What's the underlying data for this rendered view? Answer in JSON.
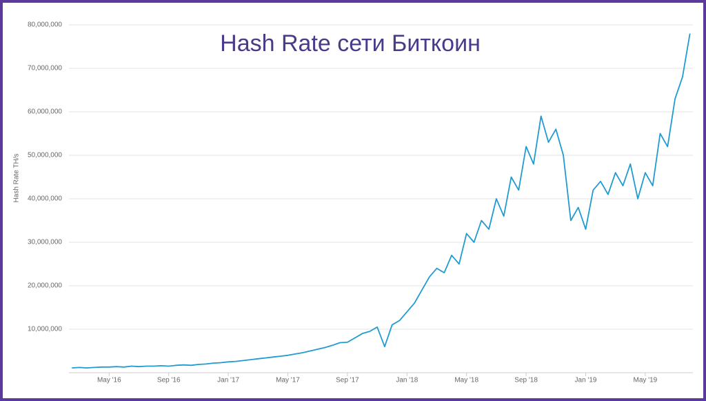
{
  "chart_data": {
    "type": "line",
    "title": "Hash Rate сети Биткоин",
    "y_label": "Hash Rate TH/s",
    "x": [
      1.5,
      2,
      2.5,
      3,
      3.5,
      4,
      4.5,
      5,
      5.5,
      6,
      6.5,
      7,
      7.5,
      8,
      8.5,
      9,
      9.5,
      10,
      10.5,
      11,
      11.5,
      12,
      12.5,
      13,
      13.5,
      14,
      14.5,
      15,
      15.5,
      16,
      16.5,
      17,
      17.5,
      18,
      18.5,
      19,
      19.5,
      20,
      20.5,
      21,
      21.5,
      22,
      22.5,
      23,
      23.5,
      24,
      24.5,
      25,
      25.5,
      26,
      26.5,
      27,
      27.5,
      28,
      28.5,
      29,
      29.5,
      30,
      30.5,
      31,
      31.5,
      32,
      32.5,
      33,
      33.5,
      34,
      34.5,
      35,
      35.5,
      36,
      36.5,
      37,
      37.5,
      38,
      38.5,
      39,
      39.5,
      40,
      40.5,
      41,
      41.5,
      42,
      42.5,
      43
    ],
    "series": [
      {
        "name": "Hash Rate",
        "color": "#1f9bd1",
        "values": [
          1100000,
          1200000,
          1100000,
          1200000,
          1300000,
          1300000,
          1400000,
          1300000,
          1500000,
          1400000,
          1500000,
          1500000,
          1600000,
          1500000,
          1700000,
          1800000,
          1700000,
          1900000,
          2000000,
          2200000,
          2300000,
          2500000,
          2600000,
          2800000,
          3000000,
          3200000,
          3400000,
          3600000,
          3800000,
          4000000,
          4300000,
          4600000,
          5000000,
          5400000,
          5800000,
          6300000,
          6900000,
          7000000,
          8000000,
          9000000,
          9500000,
          10500000,
          6000000,
          11000000,
          12000000,
          14000000,
          16000000,
          19000000,
          22000000,
          24000000,
          23000000,
          27000000,
          25000000,
          32000000,
          30000000,
          35000000,
          33000000,
          40000000,
          36000000,
          45000000,
          42000000,
          52000000,
          48000000,
          59000000,
          53000000,
          56000000,
          50000000,
          35000000,
          38000000,
          33000000,
          42000000,
          44000000,
          41000000,
          46000000,
          43000000,
          48000000,
          40000000,
          46000000,
          43000000,
          55000000,
          52000000,
          63000000,
          68000000,
          78000000
        ]
      }
    ],
    "xlim": [
      1.3,
      43.2
    ],
    "xticks": [
      {
        "value": 4,
        "label": "May '16"
      },
      {
        "value": 8,
        "label": "Sep '16"
      },
      {
        "value": 12,
        "label": "Jan '17"
      },
      {
        "value": 16,
        "label": "May '17"
      },
      {
        "value": 20,
        "label": "Sep '17"
      },
      {
        "value": 24,
        "label": "Jan '18"
      },
      {
        "value": 28,
        "label": "May '18"
      },
      {
        "value": 32,
        "label": "Sep '18"
      },
      {
        "value": 36,
        "label": "Jan '19"
      },
      {
        "value": 40,
        "label": "May '19"
      }
    ],
    "ylim": [
      0,
      80000000
    ],
    "yticks": [
      {
        "value": 10000000,
        "label": "10,000,000"
      },
      {
        "value": 20000000,
        "label": "20,000,000"
      },
      {
        "value": 30000000,
        "label": "30,000,000"
      },
      {
        "value": 40000000,
        "label": "40,000,000"
      },
      {
        "value": 50000000,
        "label": "50,000,000"
      },
      {
        "value": 60000000,
        "label": "60,000,000"
      },
      {
        "value": 70000000,
        "label": "70,000,000"
      },
      {
        "value": 80000000,
        "label": "80,000,000"
      }
    ],
    "grid": true
  }
}
